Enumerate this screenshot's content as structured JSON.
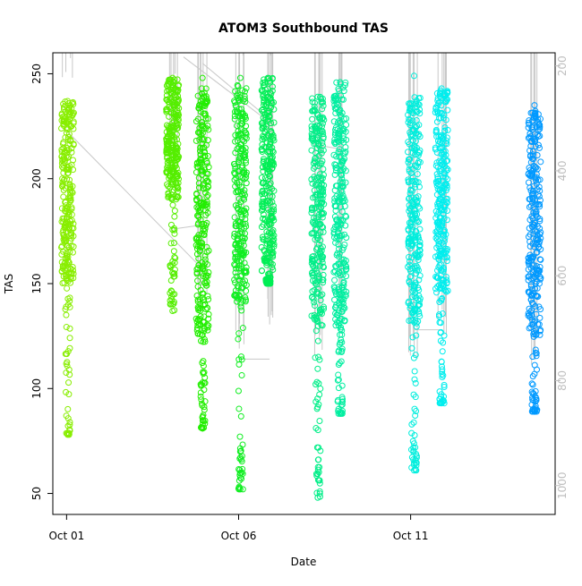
{
  "chart_data": {
    "type": "scatter",
    "title": "ATOM3 Southbound TAS",
    "xlabel": "Date",
    "ylabel": "TAS",
    "x_ticks": [
      {
        "value": 0,
        "label": "Oct 01"
      },
      {
        "value": 5,
        "label": "Oct 06"
      },
      {
        "value": 10,
        "label": "Oct 11"
      }
    ],
    "xlim": [
      -0.4,
      14.2
    ],
    "ylim": [
      40,
      260
    ],
    "y_ticks": [
      50,
      100,
      150,
      200,
      250
    ],
    "y2lim": [
      1055,
      175
    ],
    "y2_ticks": [
      200,
      400,
      600,
      800,
      1000
    ],
    "colors": {
      "axis": "#000000",
      "secondary_axis": "#bebebe",
      "track_line": "#c8c8c8"
    },
    "series": [
      {
        "x": 0.03,
        "ymin": 78,
        "ymax": 237,
        "ycore": [
          150,
          237
        ],
        "color": "#88ee00",
        "pmin": 145,
        "pmax": 225
      },
      {
        "x": 3.08,
        "ymin": 137,
        "ymax": 248,
        "ycore": [
          190,
          248
        ],
        "color": "#55ee00",
        "pmin": 215,
        "pmax": 400
      },
      {
        "x": 3.95,
        "ymin": 81,
        "ymax": 248,
        "ycore": [
          125,
          243
        ],
        "color": "#22ee00",
        "pmin": 140,
        "pmax": 680
      },
      {
        "x": 5.05,
        "ymin": 52,
        "ymax": 248,
        "ycore": [
          140,
          245
        ],
        "color": "#11ee22",
        "pmin": 180,
        "pmax": 740
      },
      {
        "x": 5.85,
        "ymin": 150,
        "ymax": 248,
        "ycore": [
          155,
          248
        ],
        "color": "#00ee55",
        "pmin": 180,
        "pmax": 700
      },
      {
        "x": 7.3,
        "ymin": 48,
        "ymax": 239,
        "ycore": [
          130,
          239
        ],
        "color": "#00ee88",
        "pmin": 145,
        "pmax": 760
      },
      {
        "x": 7.95,
        "ymin": 88,
        "ymax": 246,
        "ycore": [
          130,
          246
        ],
        "color": "#00eea0",
        "pmin": 145,
        "pmax": 690
      },
      {
        "x": 10.1,
        "ymin": 61,
        "ymax": 249,
        "ycore": [
          130,
          240
        ],
        "color": "#00eedd",
        "pmin": 145,
        "pmax": 770
      },
      {
        "x": 10.9,
        "ymin": 93,
        "ymax": 243,
        "ycore": [
          145,
          243
        ],
        "color": "#00eeee",
        "pmin": 145,
        "pmax": 720
      },
      {
        "x": 13.6,
        "ymin": 89,
        "ymax": 235,
        "ycore": [
          125,
          233
        ],
        "color": "#0099ff",
        "pmin": 145,
        "pmax": 770
      }
    ],
    "connectors": [
      {
        "x1": 0.05,
        "y1": 222,
        "x2": 3.95,
        "y2": 157
      },
      {
        "x1": 3.1,
        "y1": 176,
        "x2": 3.95,
        "y2": 178
      },
      {
        "x1": 3.4,
        "y1": 258,
        "x2": 6.05,
        "y2": 225
      },
      {
        "x1": 3.95,
        "y1": 255,
        "x2": 5.85,
        "y2": 229
      },
      {
        "x1": 5.1,
        "y1": 114,
        "x2": 5.9,
        "y2": 114
      },
      {
        "x1": 7.3,
        "y1": 216,
        "x2": 8.0,
        "y2": 214
      },
      {
        "x1": 10.1,
        "y1": 128,
        "x2": 10.9,
        "y2": 128
      }
    ]
  }
}
